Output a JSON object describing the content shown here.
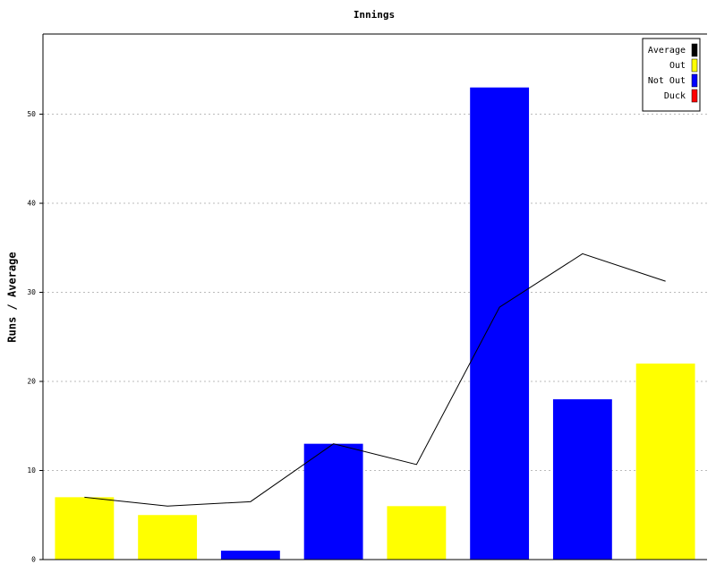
{
  "chart_data": {
    "type": "bar",
    "title": "Innings",
    "y_label": "Runs / Average",
    "categories": [
      null,
      null,
      null,
      null,
      null,
      null,
      null,
      null
    ],
    "series": [
      {
        "name": "Average",
        "type": "line",
        "color": "#000000",
        "values": [
          7,
          6,
          6.5,
          13,
          10.67,
          28.33,
          34.33,
          31.25
        ]
      },
      {
        "name": "Out",
        "color": "#ffff00",
        "values": [
          7,
          5,
          null,
          null,
          6,
          null,
          null,
          22
        ]
      },
      {
        "name": "Not Out",
        "color": "#0000ff",
        "values": [
          null,
          null,
          1,
          13,
          null,
          53,
          18,
          null
        ]
      },
      {
        "name": "Duck",
        "color": "#ff0000",
        "values": [
          null,
          null,
          null,
          null,
          null,
          null,
          null,
          null
        ]
      }
    ],
    "ylim": [
      0,
      59
    ],
    "yticks": [
      0,
      10,
      20,
      30,
      40,
      50
    ],
    "grid": true,
    "legend": "top-right"
  }
}
